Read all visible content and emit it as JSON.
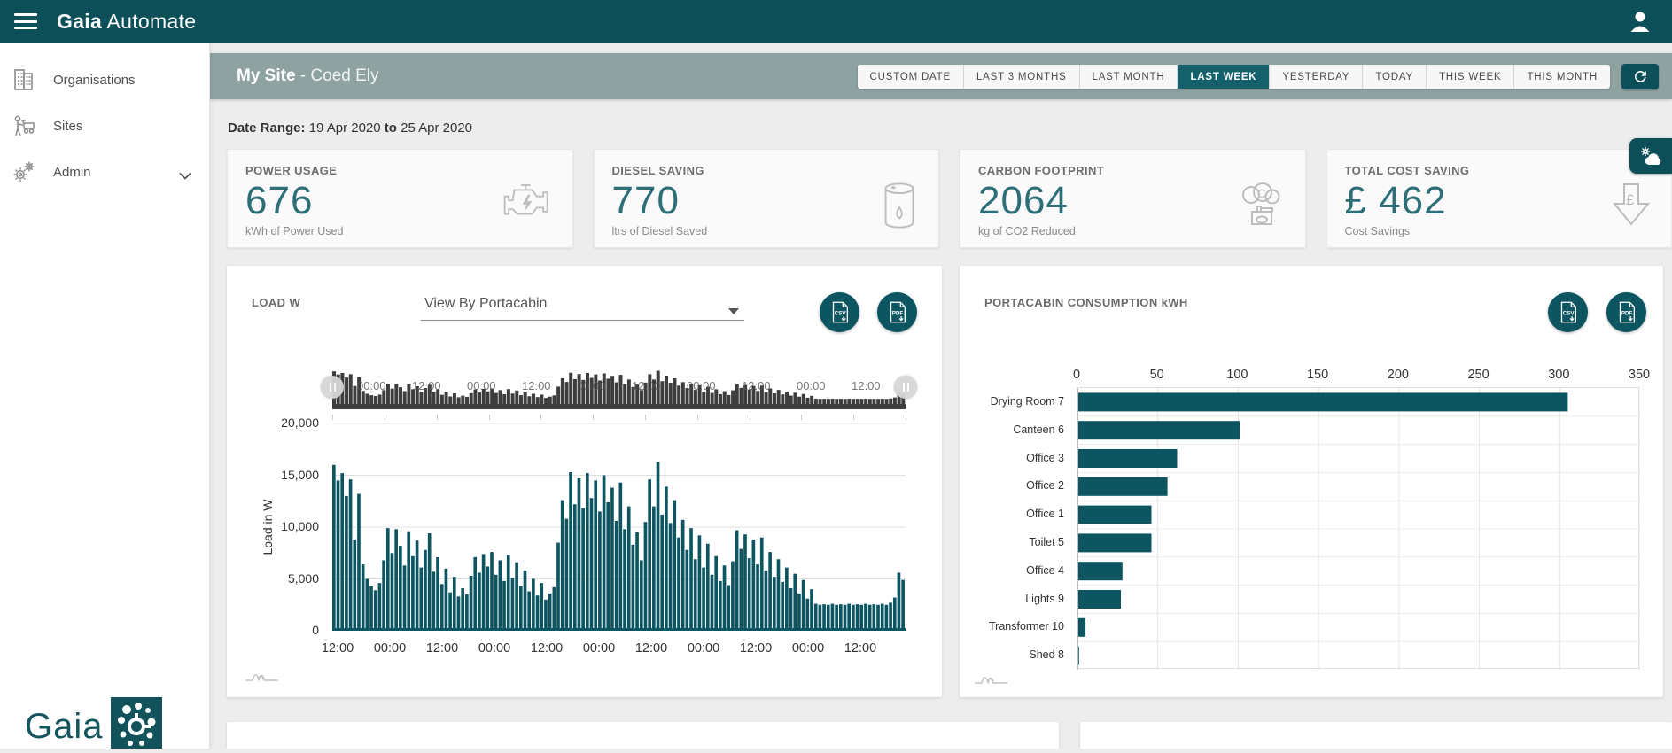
{
  "colors": {
    "header_teal": "#0d4f58",
    "accent_teal": "#14606b",
    "bar_teal": "#0d5661",
    "topbar_gray": "#8fa2a2",
    "navigator_dark": "#3d3d3d",
    "stat_number_teal": "#2d6f78",
    "background": "#ededed"
  },
  "header": {
    "brand_bold": "Gaia",
    "brand_rest": " Automate"
  },
  "sidebar": {
    "items": [
      {
        "label": "Organisations",
        "icon": "buildings-icon"
      },
      {
        "label": "Sites",
        "icon": "site-worker-icon"
      },
      {
        "label": "Admin",
        "icon": "gears-icon",
        "has_chevron": true
      }
    ],
    "logo_text": "Gaia"
  },
  "topbar": {
    "site_name": "My Site",
    "site_suffix": " - Coed Ely",
    "range_buttons": [
      "CUSTOM DATE",
      "LAST 3 MONTHS",
      "LAST MONTH",
      "LAST WEEK",
      "YESTERDAY",
      "TODAY",
      "THIS WEEK",
      "THIS MONTH"
    ],
    "active_button": "LAST WEEK",
    "refresh_icon": "refresh-icon"
  },
  "date_range": {
    "label": "Date Range:",
    "start": "19 Apr 2020",
    "joiner": "to",
    "end": "25 Apr 2020"
  },
  "stats": [
    {
      "title": "POWER USAGE",
      "value": "676",
      "subtitle": "kWh of Power Used",
      "icon": "engine-icon"
    },
    {
      "title": "DIESEL SAVING",
      "value": "770",
      "subtitle": "ltrs of Diesel Saved",
      "icon": "oil-barrel-icon"
    },
    {
      "title": "CARBON FOOTPRINT",
      "value": "2064",
      "subtitle": "kg of CO2 Reduced",
      "icon": "co2-cloud-icon"
    },
    {
      "title": "TOTAL COST SAVING",
      "value": "£ 462",
      "subtitle": "Cost Savings",
      "icon": "pound-down-icon"
    }
  ],
  "floating_button": {
    "icon": "cloud-settings-icon"
  },
  "chart_data": [
    {
      "type": "area",
      "title": "LOAD W",
      "view_by_label": "View By Portacabin",
      "ylabel": "Load in W",
      "ylim": [
        0,
        20000
      ],
      "yticks": [
        0,
        5000,
        10000,
        15000,
        20000
      ],
      "ytick_labels": [
        "0",
        "5,000",
        "10,000",
        "15,000",
        "20,000"
      ],
      "xticks": [
        "12:00",
        "00:00",
        "12:00",
        "00:00",
        "12:00",
        "00:00",
        "12:00",
        "00:00",
        "12:00",
        "00:00",
        "12:00"
      ],
      "navigator_labels": [
        "00:00",
        "12:00",
        "00:00",
        "12:00",
        "00:00",
        "12:00",
        "00:00",
        "12:00",
        "00:00",
        "12:00"
      ],
      "export_buttons": [
        "CSV",
        "PDF"
      ],
      "values": [
        16000,
        14500,
        15200,
        13000,
        14600,
        8800,
        13200,
        6400,
        5000,
        4300,
        3900,
        4600,
        6800,
        9900,
        7500,
        9800,
        8200,
        6300,
        9600,
        7200,
        8700,
        6100,
        7800,
        9400,
        5700,
        7100,
        4500,
        6000,
        3700,
        5200,
        3300,
        4100,
        3500,
        5300,
        7100,
        5600,
        7400,
        6200,
        7600,
        5400,
        6800,
        4800,
        7300,
        5100,
        6600,
        4300,
        5800,
        3800,
        5000,
        3400,
        4600,
        3000,
        3600,
        4200,
        8500,
        12600,
        10800,
        15300,
        12200,
        14700,
        11800,
        15200,
        12800,
        14500,
        11500,
        15000,
        12400,
        13800,
        10600,
        14300,
        9800,
        12000,
        8300,
        9500,
        6800,
        10500,
        14600,
        12000,
        16300,
        11200,
        13900,
        10400,
        12600,
        9000,
        10700,
        7800,
        9900,
        6900,
        9200,
        6100,
        8400,
        5400,
        7200,
        4800,
        6300,
        4400,
        6700,
        9700,
        7900,
        9300,
        7000,
        8800,
        6400,
        9000,
        5800,
        7600,
        5200,
        6900,
        4700,
        6100,
        4100,
        5500,
        3600,
        4900,
        3100,
        4000,
        2600,
        2500,
        2550,
        2500,
        2600,
        2500,
        2550,
        2500,
        2600,
        2500,
        2550,
        2500,
        2600,
        2500,
        2550,
        2500,
        2600,
        2500,
        2700,
        3200,
        5600,
        4900
      ]
    },
    {
      "type": "bar",
      "orientation": "horizontal",
      "title": "PORTACABIN CONSUMPTION kWH",
      "categories": [
        "Drying Room 7",
        "Canteen 6",
        "Office 3",
        "Office 2",
        "Office 1",
        "Toilet 5",
        "Office 4",
        "Lights 9",
        "Transformer 10",
        "Shed 8"
      ],
      "values": [
        305,
        101,
        62,
        56,
        46,
        46,
        28,
        27,
        5,
        1
      ],
      "xticks": [
        0,
        50,
        100,
        150,
        200,
        250,
        300,
        350
      ],
      "xlim": [
        0,
        350
      ],
      "export_buttons": [
        "CSV",
        "PDF"
      ]
    }
  ]
}
